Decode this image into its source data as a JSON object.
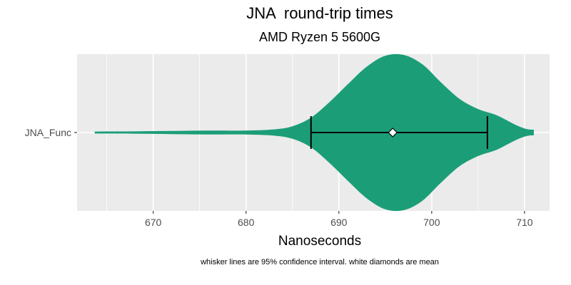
{
  "chart_data": {
    "type": "violin",
    "title": "JNA  round-trip times",
    "subtitle": "AMD Ryzen 5 5600G",
    "xlabel": "Nanoseconds",
    "ylabel": "",
    "xlim": [
      661.8,
      712.7
    ],
    "x_ticks": [
      670,
      680,
      690,
      700,
      710
    ],
    "categories": [
      "JNA_Func"
    ],
    "grid": true,
    "legend": "none",
    "colors": {
      "violin_fill": "#1b9e77",
      "panel_bg": "#ebebeb",
      "grid": "#ffffff"
    },
    "series": [
      {
        "category": "JNA_Func",
        "mean": 695.8,
        "ci_low": 687.0,
        "ci_high": 706.0,
        "density": [
          [
            663.7,
            0.013
          ],
          [
            668.0,
            0.015
          ],
          [
            672.0,
            0.02
          ],
          [
            676.0,
            0.025
          ],
          [
            680.0,
            0.025
          ],
          [
            683.0,
            0.04
          ],
          [
            685.0,
            0.08
          ],
          [
            687.0,
            0.19
          ],
          [
            689.0,
            0.39
          ],
          [
            691.0,
            0.62
          ],
          [
            693.0,
            0.84
          ],
          [
            695.0,
            0.98
          ],
          [
            697.0,
            0.99
          ],
          [
            699.0,
            0.87
          ],
          [
            701.0,
            0.64
          ],
          [
            703.0,
            0.43
          ],
          [
            705.0,
            0.3
          ],
          [
            707.0,
            0.22
          ],
          [
            709.0,
            0.1
          ],
          [
            710.2,
            0.045
          ],
          [
            711.0,
            0.035
          ]
        ]
      }
    ]
  },
  "caption": "whisker lines are 95% confidence interval. white diamonds are mean"
}
